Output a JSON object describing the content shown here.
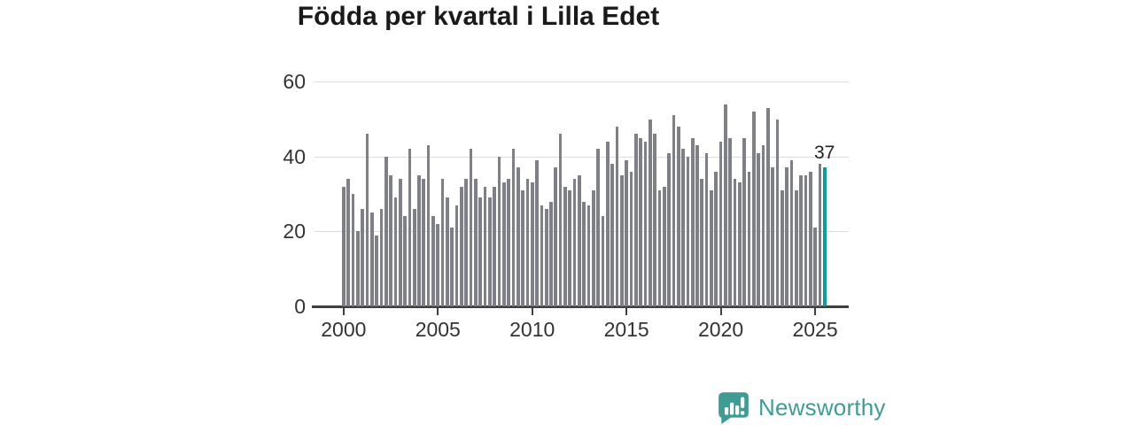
{
  "header": {
    "title": "Födda per kvartal i Lilla Edet"
  },
  "chart_data": {
    "type": "bar",
    "title": "Födda per kvartal i Lilla Edet",
    "x_start_year": 2000,
    "quarters_per_year": 4,
    "x_tick_labels": [
      "2000",
      "2005",
      "2010",
      "2015",
      "2020",
      "2025"
    ],
    "y_tick_labels": [
      "0",
      "20",
      "40",
      "60"
    ],
    "y_ticks": [
      0,
      20,
      40,
      60
    ],
    "ylim": [
      0,
      60
    ],
    "grid": true,
    "legend_position": "none",
    "bar_color": "#7f7f87",
    "highlight_color": "#00a39b",
    "highlight_index": 102,
    "highlight_label": "37",
    "values": [
      32,
      34,
      30,
      20,
      26,
      46,
      25,
      19,
      26,
      40,
      35,
      29,
      34,
      24,
      42,
      26,
      35,
      34,
      43,
      24,
      22,
      34,
      29,
      21,
      27,
      32,
      34,
      42,
      34,
      29,
      32,
      29,
      32,
      40,
      33,
      34,
      42,
      37,
      31,
      34,
      33,
      39,
      27,
      26,
      28,
      37,
      46,
      32,
      31,
      34,
      35,
      28,
      27,
      31,
      42,
      24,
      44,
      38,
      48,
      35,
      39,
      36,
      46,
      45,
      44,
      50,
      46,
      31,
      32,
      41,
      51,
      48,
      42,
      40,
      45,
      43,
      34,
      41,
      31,
      36,
      44,
      54,
      45,
      34,
      33,
      45,
      36,
      52,
      41,
      43,
      53,
      37,
      50,
      31,
      37,
      39,
      31,
      35,
      35,
      36,
      21,
      38,
      37
    ]
  },
  "branding": {
    "logo_text": "Newsworthy",
    "logo_icon": "bar-chart-speech-bubble-icon",
    "logo_color": "#3f9c95"
  }
}
